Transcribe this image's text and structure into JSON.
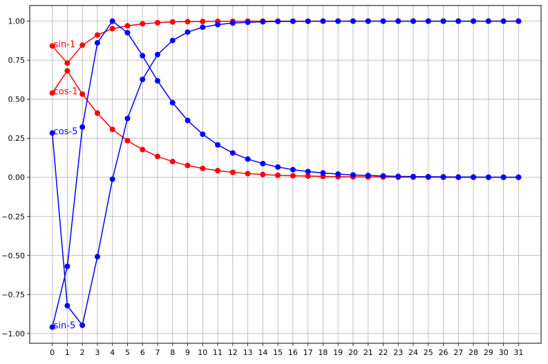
{
  "chart_data": {
    "type": "line",
    "title": "",
    "xlabel": "",
    "ylabel": "",
    "xlim": [
      -1.5,
      32.5
    ],
    "ylim": [
      -1.0625,
      1.1
    ],
    "grid": true,
    "x": [
      0,
      1,
      2,
      3,
      4,
      5,
      6,
      7,
      8,
      9,
      10,
      11,
      12,
      13,
      14,
      15,
      16,
      17,
      18,
      19,
      20,
      21,
      22,
      23,
      24,
      25,
      26,
      27,
      28,
      29,
      30,
      31
    ],
    "x_ticks": [
      "0",
      "1",
      "2",
      "3",
      "4",
      "5",
      "6",
      "7",
      "8",
      "9",
      "10",
      "11",
      "12",
      "13",
      "14",
      "15",
      "16",
      "17",
      "18",
      "19",
      "20",
      "21",
      "22",
      "23",
      "24",
      "25",
      "26",
      "27",
      "28",
      "29",
      "30",
      "31"
    ],
    "y_ticks": [
      {
        "value": 1.0,
        "label": "1.00"
      },
      {
        "value": 0.75,
        "label": "0.75"
      },
      {
        "value": 0.5,
        "label": "0.50"
      },
      {
        "value": 0.25,
        "label": "0.25"
      },
      {
        "value": 0.0,
        "label": "0.00"
      },
      {
        "value": -0.25,
        "label": "−0.25"
      },
      {
        "value": -0.5,
        "label": "−0.50"
      },
      {
        "value": -0.75,
        "label": "−0.75"
      },
      {
        "value": -1.0,
        "label": "−1.00"
      }
    ],
    "series": [
      {
        "name": "sin-1",
        "color": "#ff0000",
        "values": [
          0.841,
          0.731,
          0.846,
          0.911,
          0.952,
          0.97,
          0.983,
          0.99,
          0.995,
          0.997,
          0.998,
          0.999,
          0.999,
          1.0,
          1.0,
          1.0,
          1.0,
          1.0,
          1.0,
          1.0,
          1.0,
          1.0,
          1.0,
          1.0,
          1.0,
          1.0,
          1.0,
          1.0,
          1.0,
          1.0,
          1.0,
          1.0
        ]
      },
      {
        "name": "cos-1",
        "color": "#ff0000",
        "values": [
          0.54,
          0.682,
          0.533,
          0.411,
          0.307,
          0.235,
          0.178,
          0.134,
          0.101,
          0.076,
          0.057,
          0.043,
          0.032,
          0.024,
          0.018,
          0.013,
          0.01,
          0.008,
          0.006,
          0.004,
          0.003,
          0.002,
          0.002,
          0.001,
          0.001,
          0.001,
          0.0,
          0.0,
          0.0,
          0.0,
          0.0,
          0.0
        ]
      },
      {
        "name": "cos-5",
        "color": "#0000ff",
        "values": [
          0.284,
          -0.822,
          -0.947,
          -0.508,
          -0.012,
          0.377,
          0.627,
          0.786,
          0.876,
          0.93,
          0.961,
          0.978,
          0.988,
          0.993,
          0.996,
          0.998,
          0.999,
          0.999,
          1.0,
          1.0,
          1.0,
          1.0,
          1.0,
          1.0,
          1.0,
          1.0,
          1.0,
          1.0,
          1.0,
          1.0,
          1.0,
          1.0
        ]
      },
      {
        "name": "sin-5",
        "color": "#0000ff",
        "values": [
          -0.959,
          -0.57,
          0.322,
          0.861,
          1.0,
          0.926,
          0.779,
          0.618,
          0.478,
          0.364,
          0.276,
          0.208,
          0.156,
          0.117,
          0.088,
          0.066,
          0.049,
          0.037,
          0.028,
          0.021,
          0.015,
          0.012,
          0.009,
          0.006,
          0.005,
          0.004,
          0.003,
          0.002,
          0.002,
          0.001,
          0.001,
          0.001
        ]
      }
    ]
  }
}
